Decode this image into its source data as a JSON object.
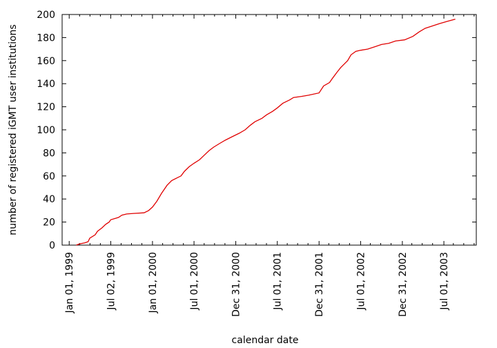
{
  "chart_data": {
    "type": "line",
    "xlabel": "calendar date",
    "ylabel": "number of registered iGMT user institutions",
    "ylim": [
      0,
      200
    ],
    "yticks": [
      0,
      20,
      40,
      60,
      80,
      100,
      120,
      140,
      160,
      180,
      200
    ],
    "xlim": [
      "1998-12-01",
      "2003-11-20"
    ],
    "xticks": [
      {
        "date": "1999-01-01",
        "label": "Jan 01, 1999"
      },
      {
        "date": "1999-07-02",
        "label": "Jul 02, 1999"
      },
      {
        "date": "2000-01-01",
        "label": "Jan 01, 2000"
      },
      {
        "date": "2000-07-01",
        "label": "Jul 01, 2000"
      },
      {
        "date": "2000-12-31",
        "label": "Dec 31, 2000"
      },
      {
        "date": "2001-07-01",
        "label": "Jul 01, 2001"
      },
      {
        "date": "2001-12-31",
        "label": "Dec 31, 2001"
      },
      {
        "date": "2002-07-01",
        "label": "Jul 01, 2002"
      },
      {
        "date": "2002-12-31",
        "label": "Dec 31, 2002"
      },
      {
        "date": "2003-07-01",
        "label": "Jul 01, 2003"
      }
    ],
    "minor_ticks_per_interval": 3,
    "grid": false,
    "color": "#e00000",
    "series": [
      {
        "points": [
          [
            "1999-02-01",
            0
          ],
          [
            "1999-02-15",
            1
          ],
          [
            "1999-03-10",
            2
          ],
          [
            "1999-03-25",
            3
          ],
          [
            "1999-04-01",
            6
          ],
          [
            "1999-04-25",
            9
          ],
          [
            "1999-05-05",
            12
          ],
          [
            "1999-05-25",
            15
          ],
          [
            "1999-06-10",
            18
          ],
          [
            "1999-06-25",
            20
          ],
          [
            "1999-07-02",
            22
          ],
          [
            "1999-08-05",
            24
          ],
          [
            "1999-08-20",
            26
          ],
          [
            "1999-09-10",
            27
          ],
          [
            "1999-10-10",
            27.5
          ],
          [
            "1999-11-25",
            28
          ],
          [
            "1999-12-15",
            30
          ],
          [
            "2000-01-01",
            33
          ],
          [
            "2000-01-20",
            38
          ],
          [
            "2000-02-10",
            45
          ],
          [
            "2000-03-05",
            52
          ],
          [
            "2000-03-25",
            56
          ],
          [
            "2000-04-15",
            58
          ],
          [
            "2000-05-05",
            60
          ],
          [
            "2000-05-20",
            64
          ],
          [
            "2000-06-10",
            68
          ],
          [
            "2000-07-01",
            71
          ],
          [
            "2000-07-25",
            74
          ],
          [
            "2000-08-15",
            78
          ],
          [
            "2000-09-05",
            82
          ],
          [
            "2000-09-25",
            85
          ],
          [
            "2000-10-20",
            88
          ],
          [
            "2000-11-15",
            91
          ],
          [
            "2000-12-15",
            94
          ],
          [
            "2001-01-15",
            97
          ],
          [
            "2001-02-10",
            100
          ],
          [
            "2001-03-05",
            104
          ],
          [
            "2001-03-25",
            107
          ],
          [
            "2001-04-25",
            110
          ],
          [
            "2001-05-15",
            113
          ],
          [
            "2001-06-10",
            116
          ],
          [
            "2001-07-01",
            119
          ],
          [
            "2001-07-25",
            123
          ],
          [
            "2001-08-25",
            126
          ],
          [
            "2001-09-10",
            128
          ],
          [
            "2001-10-15",
            129
          ],
          [
            "2001-11-15",
            130
          ],
          [
            "2001-12-31",
            132
          ],
          [
            "2002-01-20",
            138
          ],
          [
            "2002-02-15",
            141
          ],
          [
            "2002-03-01",
            145
          ],
          [
            "2002-03-20",
            150
          ],
          [
            "2002-04-05",
            154
          ],
          [
            "2002-04-20",
            157
          ],
          [
            "2002-05-05",
            160
          ],
          [
            "2002-05-20",
            165
          ],
          [
            "2002-06-10",
            168
          ],
          [
            "2002-07-01",
            169
          ],
          [
            "2002-08-01",
            170
          ],
          [
            "2002-09-01",
            172
          ],
          [
            "2002-10-01",
            174
          ],
          [
            "2002-11-01",
            175
          ],
          [
            "2002-12-01",
            177
          ],
          [
            "2003-01-10",
            178
          ],
          [
            "2003-02-15",
            181
          ],
          [
            "2003-03-15",
            185
          ],
          [
            "2003-04-10",
            188
          ],
          [
            "2003-05-10",
            190
          ],
          [
            "2003-06-10",
            192
          ],
          [
            "2003-07-15",
            194
          ],
          [
            "2003-08-20",
            196
          ]
        ]
      }
    ]
  }
}
